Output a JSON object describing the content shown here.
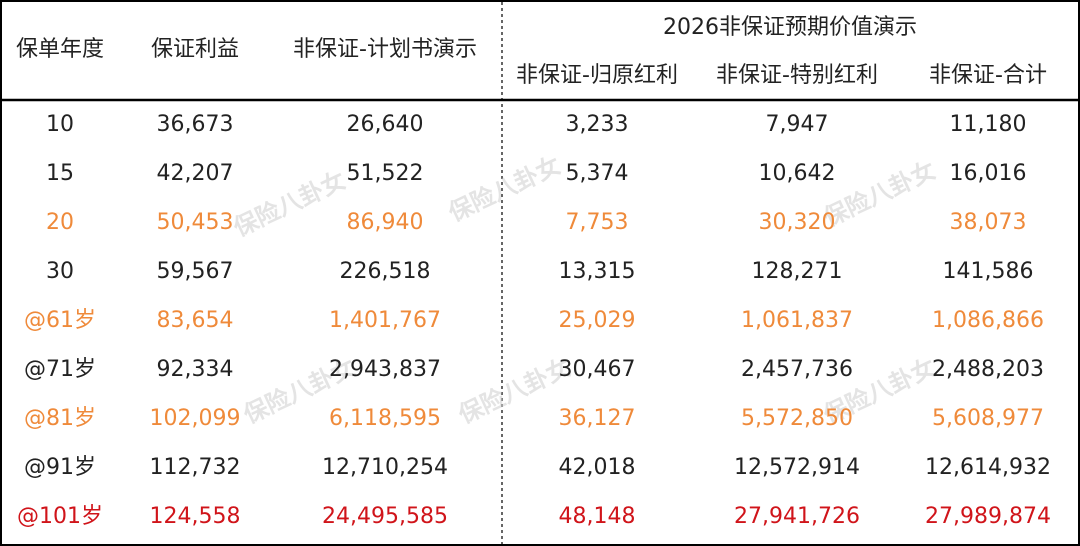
{
  "table": {
    "group_header": "2026非保证预期价值演示",
    "headers": [
      "保单年度",
      "保证利益",
      "非保证-计划书演示",
      "非保证-归原红利",
      "非保证-特别红利",
      "非保证-合计"
    ],
    "rows": [
      {
        "color": "#222222",
        "cells": [
          "10",
          "36,673",
          "26,640",
          "3,233",
          "7,947",
          "11,180"
        ]
      },
      {
        "color": "#222222",
        "cells": [
          "15",
          "42,207",
          "51,522",
          "5,374",
          "10,642",
          "16,016"
        ]
      },
      {
        "color": "#ef8a3a",
        "cells": [
          "20",
          "50,453",
          "86,940",
          "7,753",
          "30,320",
          "38,073"
        ]
      },
      {
        "color": "#222222",
        "cells": [
          "30",
          "59,567",
          "226,518",
          "13,315",
          "128,271",
          "141,586"
        ]
      },
      {
        "color": "#ef8a3a",
        "cells": [
          "@61岁",
          "83,654",
          "1,401,767",
          "25,029",
          "1,061,837",
          "1,086,866"
        ]
      },
      {
        "color": "#222222",
        "cells": [
          "@71岁",
          "92,334",
          "2,943,837",
          "30,467",
          "2,457,736",
          "2,488,203"
        ]
      },
      {
        "color": "#ef8a3a",
        "cells": [
          "@81岁",
          "102,099",
          "6,118,595",
          "36,127",
          "5,572,850",
          "5,608,977"
        ]
      },
      {
        "color": "#222222",
        "cells": [
          "@91岁",
          "112,732",
          "12,710,254",
          "42,018",
          "12,572,914",
          "12,614,932"
        ]
      },
      {
        "color": "#d0141a",
        "cells": [
          "@101岁",
          "124,558",
          "24,495,585",
          "48,148",
          "27,941,726",
          "27,989,874"
        ]
      }
    ]
  },
  "watermark": "保险八卦女"
}
